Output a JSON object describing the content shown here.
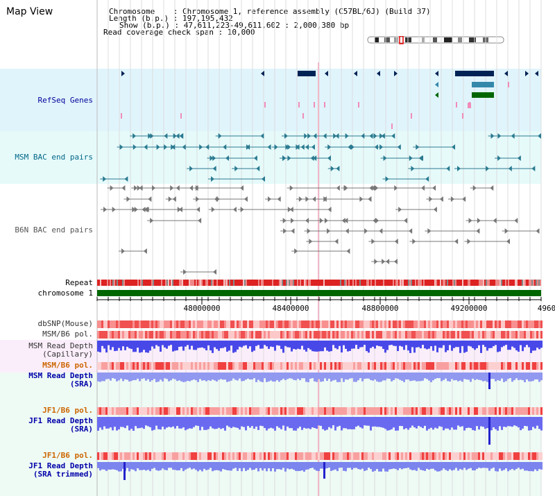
{
  "header": {
    "title": "Map View",
    "chromosome_line": "Chromosome    : Chromosome 1, reference assembly (C57BL/6J) (Build 37)",
    "length_line": "Length (b.p.) : 197,195,432",
    "show_line": "Show (b.p.) : 47,611,223-49,611,602 : 2,000,380 bp",
    "coverage_line": "Read coverage check span : 10,000"
  },
  "tracks": {
    "refseq": "RefSeq Genes",
    "msm_bac": "MSM BAC end pairs",
    "b6n_bac": "B6N BAC end pairs",
    "repeat": "Repeat",
    "chromosome": "chromosome 1",
    "dbsnp": "dbSNP(Mouse)",
    "msm_b6_pol": "MSM/B6 pol.",
    "msm_depth_cap_1": "MSM Read Depth",
    "msm_depth_cap_2": "(Capillary)",
    "msm_b6_pol_sra": "MSM/B6 pol.",
    "msm_depth_sra_1": "MSM Read Depth",
    "msm_depth_sra_2": "(SRA)",
    "jf1_b6_pol": "JF1/B6 pol.",
    "jf1_depth_sra_1": "JF1 Read Depth",
    "jf1_depth_sra_2": "(SRA)",
    "jf1_b6_pol_2": "JF1/B6 pol.",
    "jf1_depth_trim_1": "JF1 Read Depth",
    "jf1_depth_trim_2": "(SRA trimmed)"
  },
  "ruler": {
    "ticks": [
      "48000000",
      "48400000",
      "48800000",
      "49200000",
      "4960"
    ]
  },
  "colors": {
    "refseq_bg": "#e0f4fc",
    "msm_bg": "#e6fafa",
    "depth_bg": "#f3f3fb",
    "refseq_label": "#000099",
    "msm_label": "#006688",
    "b6n_label": "#555555",
    "pol_label": "#cc6600",
    "depth_label": "#0000aa",
    "gene_dark": "#002255",
    "gene_mid": "#3388aa",
    "gene_green": "#006600",
    "chromosome_bar": "#006600",
    "repeat_red": "#dd2222"
  }
}
